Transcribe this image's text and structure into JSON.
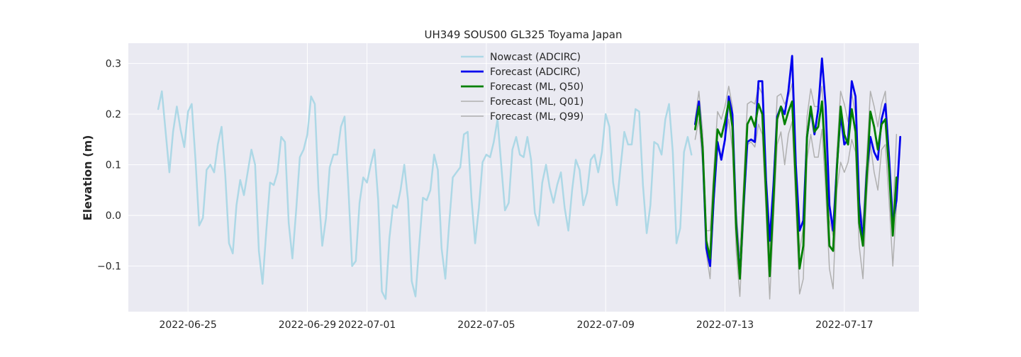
{
  "chart_data": {
    "type": "line",
    "title": "UH349 SOUS00 GL325 Toyama Japan",
    "xlabel": "",
    "ylabel": "Elevation (m)",
    "xlim": [
      "2022-06-23T00:00",
      "2022-07-19T12:00"
    ],
    "ylim": [
      -0.19,
      0.34
    ],
    "x_ticks": [
      "2022-06-25",
      "2022-06-29",
      "2022-07-01",
      "2022-07-05",
      "2022-07-09",
      "2022-07-13",
      "2022-07-17"
    ],
    "y_ticks": [
      -0.1,
      0.0,
      0.1,
      0.2,
      0.3
    ],
    "y_tick_labels": [
      "−0.1",
      "0.0",
      "0.1",
      "0.2",
      "0.3"
    ],
    "grid": true,
    "legend_position": "top-center",
    "background": "#eaeaf2",
    "series": [
      {
        "name": "Nowcast (ADCIRC)",
        "color": "#add8e6",
        "width": 2.5,
        "start": "2022-06-24T00:00",
        "step_hours": 3,
        "values": [
          0.21,
          0.245,
          0.165,
          0.085,
          0.165,
          0.215,
          0.17,
          0.135,
          0.205,
          0.22,
          0.11,
          -0.02,
          -0.005,
          0.09,
          0.1,
          0.085,
          0.14,
          0.175,
          0.08,
          -0.055,
          -0.075,
          0.02,
          0.07,
          0.04,
          0.085,
          0.13,
          0.1,
          -0.07,
          -0.135,
          -0.03,
          0.065,
          0.06,
          0.085,
          0.155,
          0.145,
          -0.015,
          -0.085,
          0.01,
          0.115,
          0.13,
          0.16,
          0.235,
          0.22,
          0.05,
          -0.06,
          -0.005,
          0.095,
          0.12,
          0.12,
          0.175,
          0.195,
          0.055,
          -0.1,
          -0.09,
          0.025,
          0.075,
          0.065,
          0.1,
          0.13,
          0.03,
          -0.15,
          -0.165,
          -0.045,
          0.02,
          0.015,
          0.05,
          0.1,
          0.03,
          -0.13,
          -0.16,
          -0.06,
          0.035,
          0.03,
          0.05,
          0.12,
          0.09,
          -0.065,
          -0.125,
          -0.02,
          0.075,
          0.085,
          0.095,
          0.16,
          0.165,
          0.035,
          -0.055,
          0.015,
          0.105,
          0.12,
          0.115,
          0.145,
          0.19,
          0.1,
          0.01,
          0.025,
          0.13,
          0.155,
          0.12,
          0.115,
          0.155,
          0.11,
          0.005,
          -0.02,
          0.065,
          0.1,
          0.055,
          0.025,
          0.06,
          0.085,
          0.015,
          -0.03,
          0.05,
          0.11,
          0.09,
          0.02,
          0.045,
          0.11,
          0.12,
          0.085,
          0.125,
          0.2,
          0.175,
          0.065,
          0.02,
          0.095,
          0.165,
          0.14,
          0.14,
          0.21,
          0.205,
          0.06,
          -0.035,
          0.02,
          0.145,
          0.14,
          0.12,
          0.19,
          0.22,
          0.125,
          -0.055,
          -0.025,
          0.125,
          0.155,
          0.12
        ]
      },
      {
        "name": "Forecast (ADCIRC)",
        "color": "#0000ee",
        "width": 2.8,
        "start": "2022-07-12T00:00",
        "step_hours": 3,
        "values": [
          0.18,
          0.225,
          0.13,
          -0.065,
          -0.1,
          0.035,
          0.145,
          0.11,
          0.15,
          0.235,
          0.2,
          -0.015,
          -0.12,
          0.02,
          0.145,
          0.15,
          0.145,
          0.265,
          0.265,
          0.07,
          -0.05,
          0.06,
          0.195,
          0.215,
          0.2,
          0.245,
          0.315,
          0.1,
          -0.03,
          -0.01,
          0.155,
          0.21,
          0.16,
          0.21,
          0.31,
          0.215,
          0.02,
          -0.03,
          0.095,
          0.2,
          0.14,
          0.15,
          0.265,
          0.235,
          0.025,
          -0.05,
          0.085,
          0.155,
          0.125,
          0.11,
          0.19,
          0.22,
          0.115,
          -0.015,
          0.03,
          0.155
        ]
      },
      {
        "name": "Forecast (ML, Q50)",
        "color": "#008000",
        "width": 2.8,
        "start": "2022-07-12T00:00",
        "step_hours": 3,
        "values": [
          0.17,
          0.215,
          0.135,
          -0.05,
          -0.085,
          0.06,
          0.17,
          0.155,
          0.185,
          0.225,
          0.175,
          -0.025,
          -0.125,
          0.03,
          0.18,
          0.195,
          0.175,
          0.22,
          0.2,
          0.045,
          -0.12,
          0.03,
          0.19,
          0.215,
          0.18,
          0.205,
          0.225,
          0.065,
          -0.105,
          -0.06,
          0.155,
          0.215,
          0.165,
          0.175,
          0.225,
          0.1,
          -0.06,
          -0.07,
          0.09,
          0.215,
          0.16,
          0.14,
          0.21,
          0.165,
          -0.015,
          -0.06,
          0.075,
          0.205,
          0.175,
          0.13,
          0.18,
          0.19,
          0.09,
          -0.04,
          0.075
        ]
      },
      {
        "name": "Forecast (ML, Q01)",
        "color": "#b0b0b0",
        "width": 1.5,
        "start": "2022-07-12T00:00",
        "step_hours": 3,
        "values": [
          0.15,
          0.19,
          0.1,
          -0.075,
          -0.125,
          0.02,
          0.13,
          0.12,
          0.15,
          0.19,
          0.13,
          -0.07,
          -0.16,
          -0.01,
          0.14,
          0.145,
          0.135,
          0.18,
          0.16,
          0.005,
          -0.165,
          -0.01,
          0.14,
          0.165,
          0.1,
          0.16,
          0.185,
          0.02,
          -0.155,
          -0.125,
          0.11,
          0.16,
          0.115,
          0.115,
          0.17,
          0.05,
          -0.105,
          -0.145,
          0.05,
          0.105,
          0.085,
          0.105,
          0.15,
          0.125,
          -0.06,
          -0.125,
          0.04,
          0.14,
          0.085,
          0.05,
          0.13,
          0.14,
          0.03,
          -0.1,
          0.02
        ]
      },
      {
        "name": "Forecast (ML, Q99)",
        "color": "#b0b0b0",
        "width": 1.5,
        "start": "2022-07-12T00:00",
        "step_hours": 3,
        "values": [
          0.19,
          0.245,
          0.165,
          -0.03,
          -0.03,
          0.09,
          0.205,
          0.19,
          0.215,
          0.255,
          0.215,
          0.01,
          -0.08,
          0.065,
          0.22,
          0.225,
          0.22,
          0.255,
          0.24,
          0.085,
          -0.08,
          0.07,
          0.235,
          0.24,
          0.22,
          0.235,
          0.26,
          0.11,
          -0.07,
          -0.025,
          0.195,
          0.25,
          0.215,
          0.215,
          0.255,
          0.14,
          -0.01,
          -0.04,
          0.125,
          0.245,
          0.22,
          0.185,
          0.24,
          0.2,
          0.03,
          -0.02,
          0.115,
          0.245,
          0.215,
          0.175,
          0.22,
          0.245,
          0.125,
          -0.01,
          0.16
        ]
      }
    ]
  }
}
